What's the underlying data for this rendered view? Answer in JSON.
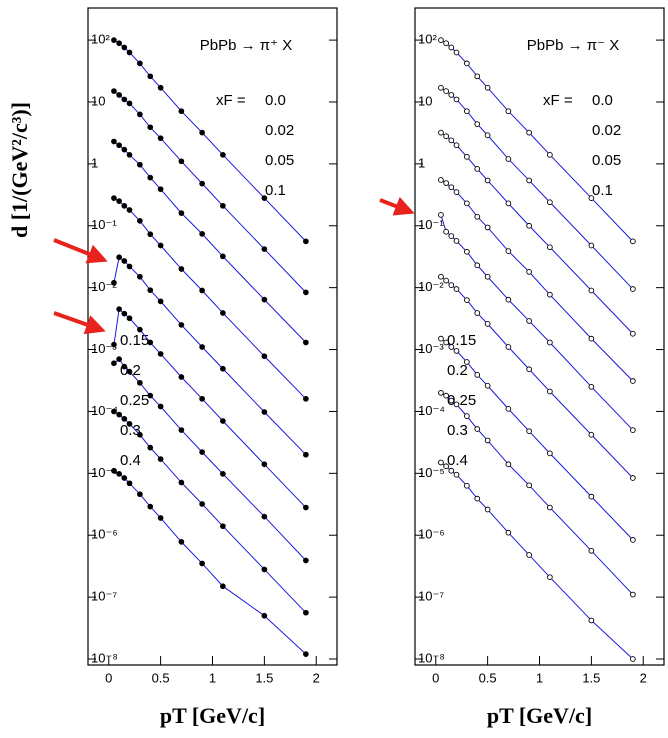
{
  "chart_data": [
    {
      "type": "line",
      "title": "PbPb → π⁺ X",
      "annotation": "xF =",
      "y_label": "d [1/(GeV²/c³)]",
      "x_label": "pT [GeV/c]",
      "log_y": true,
      "marker": "filled",
      "color": "#1a1adc",
      "xlim": [
        -0.2,
        2.2
      ],
      "xticks": [
        0,
        0.5,
        1,
        1.5,
        2
      ],
      "ylim": [
        8e-09,
        330
      ],
      "yticks": [
        {
          "value": 100,
          "label": "10²"
        },
        10,
        1,
        {
          "value": 0.1,
          "label": "10⁻¹"
        },
        {
          "value": 0.01,
          "label": "10⁻²"
        },
        {
          "value": 0.001,
          "label": "10⁻³"
        },
        {
          "value": 0.0001,
          "label": "10⁻⁴"
        },
        {
          "value": 1e-05,
          "label": "10⁻⁵"
        },
        {
          "value": 1e-06,
          "label": "10⁻⁶"
        },
        {
          "value": 1e-07,
          "label": "10⁻⁷"
        },
        {
          "value": 1e-08,
          "label": "10⁻⁸"
        }
      ],
      "x": [
        0.05,
        0.1,
        0.15,
        0.2,
        0.3,
        0.4,
        0.5,
        0.7,
        0.9,
        1.1,
        1.5,
        1.9
      ],
      "series": [
        {
          "name": "0.0",
          "values": [
            100,
            89,
            76,
            63,
            42,
            26,
            17,
            7.1,
            3.2,
            1.4,
            0.28,
            0.056
          ]
        },
        {
          "name": "0.02",
          "values": [
            15,
            13,
            11,
            9.5,
            6.3,
            3.9,
            2.6,
            1.1,
            0.48,
            0.21,
            0.042,
            0.0084
          ]
        },
        {
          "name": "0.05",
          "values": [
            2.3,
            2.0,
            1.7,
            1.4,
            0.97,
            0.6,
            0.39,
            0.16,
            0.074,
            0.032,
            0.0064,
            0.0013
          ]
        },
        {
          "name": "0.1",
          "values": [
            0.28,
            0.25,
            0.21,
            0.18,
            0.12,
            0.073,
            0.048,
            0.02,
            0.009,
            0.0039,
            0.00078,
            0.00016
          ]
        },
        {
          "name": "0.15",
          "values": [
            0.012,
            0.031,
            0.027,
            0.022,
            0.015,
            0.0091,
            0.006,
            0.0025,
            0.0011,
            0.00049,
            9.8e-05,
            2e-05
          ]
        },
        {
          "name": "0.2",
          "values": [
            0.0012,
            0.0045,
            0.0038,
            0.0032,
            0.0021,
            0.0013,
            0.00085,
            0.00036,
            0.00016,
            7e-05,
            1.4e-05,
            2.8e-06
          ]
        },
        {
          "name": "0.25",
          "values": [
            0.0006,
            0.0007,
            0.00053,
            0.00044,
            0.00029,
            0.00018,
            0.00012,
            5e-05,
            2.2e-05,
            9.8e-06,
            2e-06,
            3.9e-07
          ]
        },
        {
          "name": "0.3",
          "values": [
            0.0001,
            8.9e-05,
            7.6e-05,
            6.3e-05,
            4.2e-05,
            2.6e-05,
            1.7e-05,
            7.1e-06,
            3.2e-06,
            1.4e-06,
            2.8e-07,
            5.6e-08
          ]
        },
        {
          "name": "0.4",
          "values": [
            1.1e-05,
            9.8e-06,
            8.4e-06,
            6.9e-06,
            4.6e-06,
            2.9e-06,
            1.9e-06,
            7.8e-07,
            3.5e-07,
            1.5e-07,
            5e-08,
            1.2e-08
          ]
        }
      ]
    },
    {
      "type": "line",
      "title": "PbPb → π⁻ X",
      "annotation": "xF =",
      "x_label": "pT [GeV/c]",
      "log_y": true,
      "marker": "open",
      "color": "#1a1adc",
      "xlim": [
        -0.2,
        2.2
      ],
      "xticks": [
        0,
        0.5,
        1,
        1.5,
        2
      ],
      "ylim": [
        8e-09,
        330
      ],
      "yticks": [
        {
          "value": 100,
          "label": "10²"
        },
        10,
        1,
        {
          "value": 0.1,
          "label": "10⁻¹"
        },
        {
          "value": 0.01,
          "label": "10⁻²"
        },
        {
          "value": 0.001,
          "label": "10⁻³"
        },
        {
          "value": 0.0001,
          "label": "10⁻⁴"
        },
        {
          "value": 1e-05,
          "label": "10⁻⁵"
        },
        {
          "value": 1e-06,
          "label": "10⁻⁶"
        },
        {
          "value": 1e-07,
          "label": "10⁻⁷"
        },
        {
          "value": 1e-08,
          "label": "10⁻⁸"
        }
      ],
      "x": [
        0.05,
        0.1,
        0.15,
        0.2,
        0.3,
        0.4,
        0.5,
        0.7,
        0.9,
        1.1,
        1.5,
        1.9
      ],
      "series": [
        {
          "name": "0.0",
          "values": [
            100,
            89,
            76,
            63,
            42,
            26,
            17,
            7.1,
            3.2,
            1.4,
            0.28,
            0.056
          ]
        },
        {
          "name": "0.02",
          "values": [
            17,
            15,
            13,
            11,
            7.1,
            4.4,
            2.9,
            1.2,
            0.54,
            0.24,
            0.048,
            0.0095
          ]
        },
        {
          "name": "0.05",
          "values": [
            3.2,
            2.8,
            2.4,
            2.0,
            1.3,
            0.83,
            0.54,
            0.23,
            0.1,
            0.045,
            0.009,
            0.0018
          ]
        },
        {
          "name": "0.1",
          "values": [
            0.55,
            0.49,
            0.42,
            0.35,
            0.23,
            0.14,
            0.094,
            0.039,
            0.018,
            0.0077,
            0.0015,
            0.00031
          ]
        },
        {
          "name": "0.15",
          "values": [
            0.15,
            0.08,
            0.068,
            0.057,
            0.038,
            0.023,
            0.015,
            0.0064,
            0.0029,
            0.0013,
            0.00025,
            5e-05
          ]
        },
        {
          "name": "0.2",
          "values": [
            0.015,
            0.013,
            0.011,
            0.0095,
            0.0063,
            0.0039,
            0.0026,
            0.0011,
            0.00048,
            0.00021,
            4.2e-05,
            8.4e-06
          ]
        },
        {
          "name": "0.25",
          "values": [
            0.0015,
            0.0013,
            0.0011,
            0.00095,
            0.00063,
            0.00039,
            0.00026,
            0.00011,
            4.8e-05,
            2.1e-05,
            4.2e-06,
            8.4e-07
          ]
        },
        {
          "name": "0.3",
          "values": [
            0.0002,
            0.00018,
            0.00015,
            0.00013,
            8.4e-05,
            5.2e-05,
            3.4e-05,
            1.4e-05,
            6.4e-06,
            2.8e-06,
            5.6e-07,
            1.1e-07
          ]
        },
        {
          "name": "0.4",
          "values": [
            1.5e-05,
            1.3e-05,
            1.1e-05,
            9.5e-06,
            6.3e-06,
            3.9e-06,
            2.6e-06,
            1.1e-06,
            4.8e-07,
            2.1e-07,
            4.2e-08,
            1e-08
          ]
        }
      ]
    }
  ]
}
